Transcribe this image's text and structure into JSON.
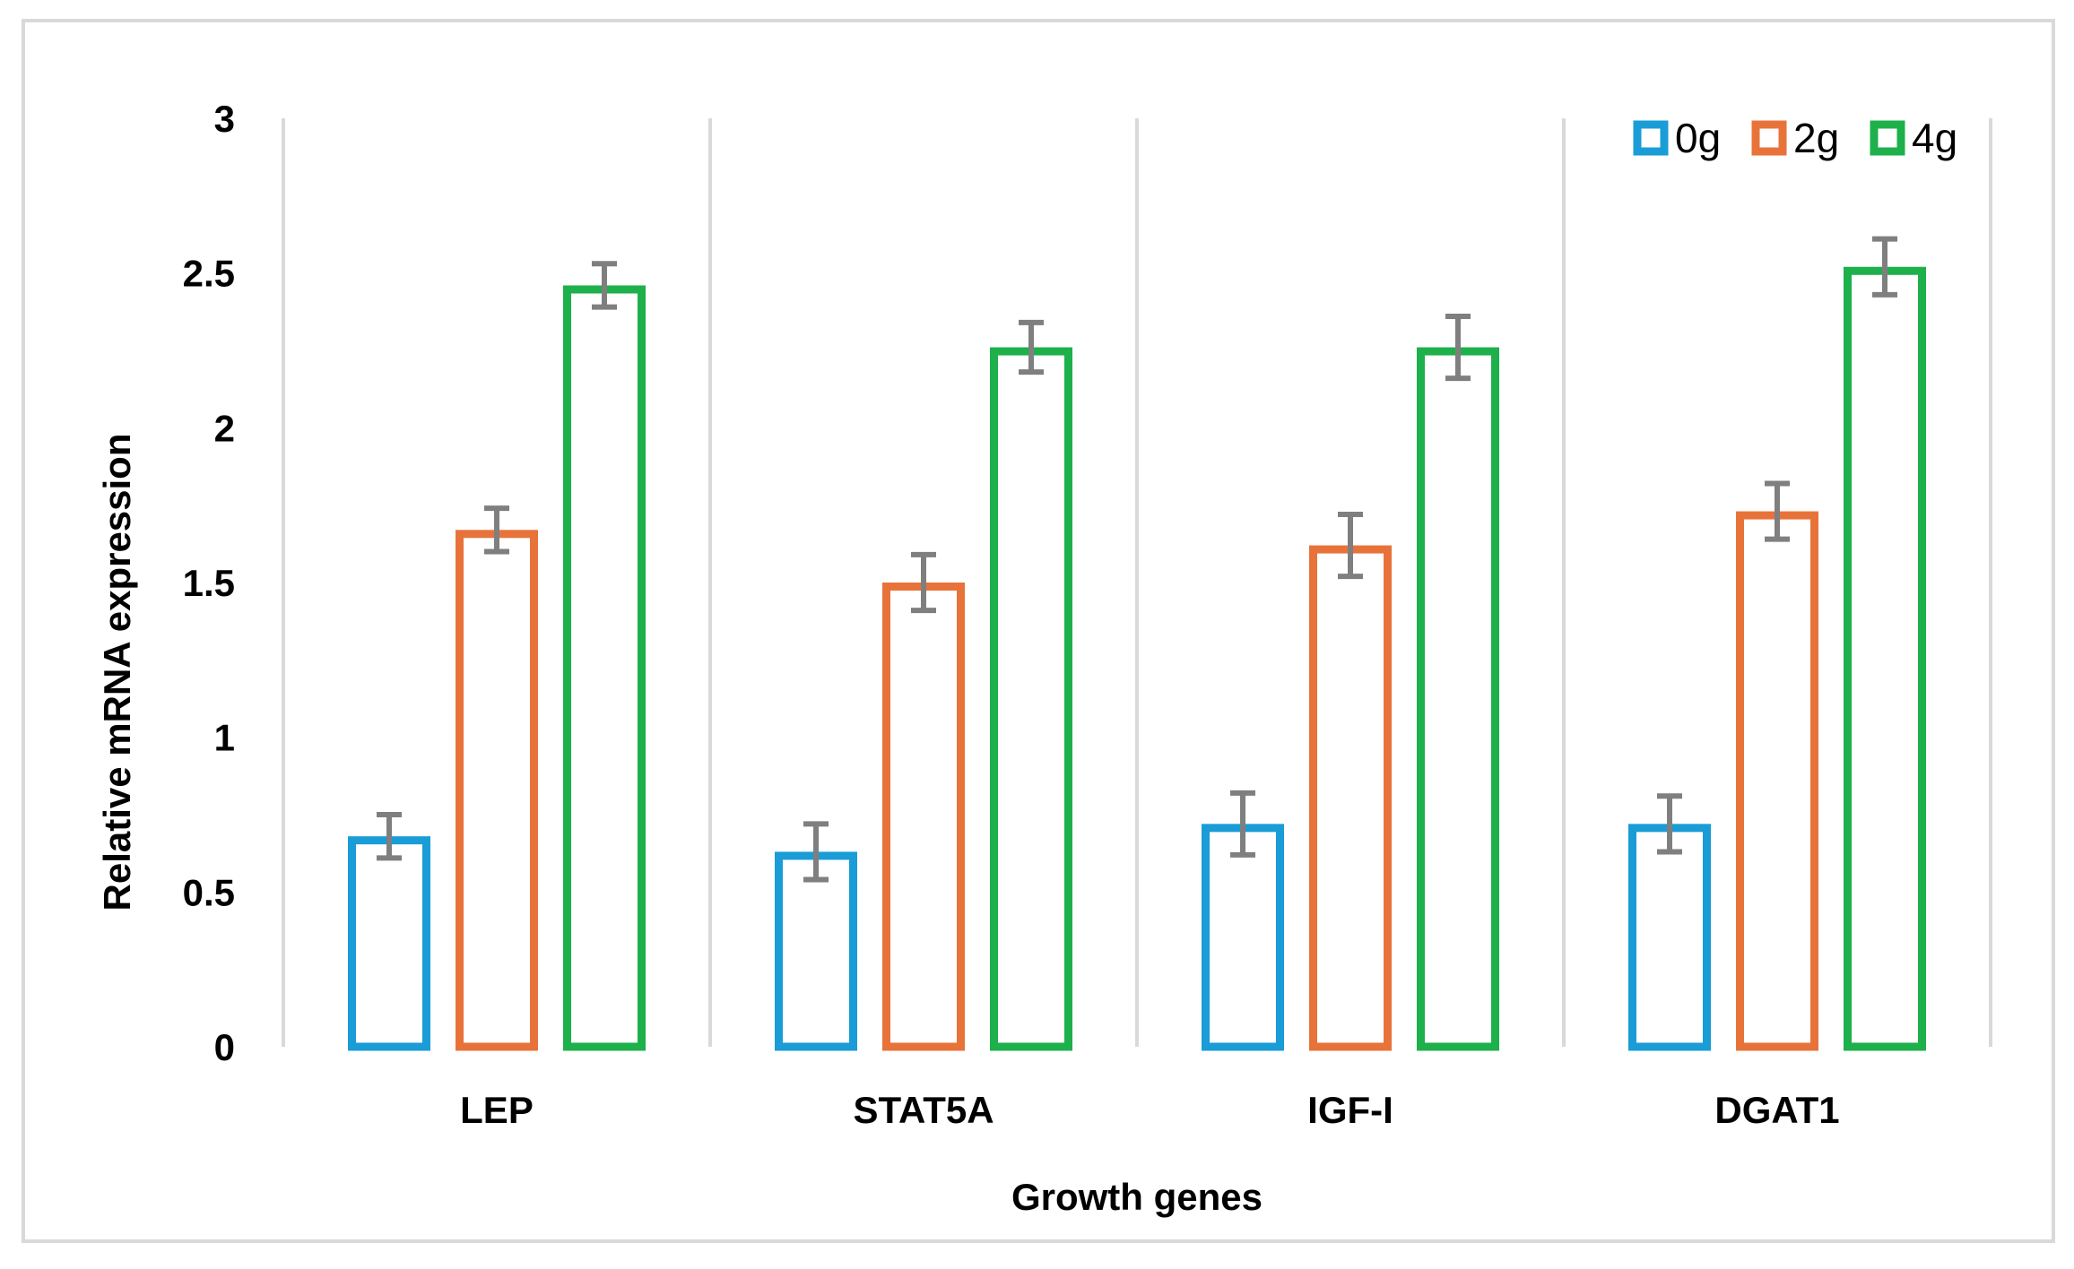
{
  "chart_data": {
    "type": "bar",
    "title": "",
    "xlabel": "Growth genes",
    "ylabel": "Relative mRNA expression",
    "ylim": [
      0,
      3
    ],
    "yticks": [
      "0",
      "0.5",
      "1",
      "1.5",
      "2",
      "2.5",
      "3"
    ],
    "categories": [
      "LEP",
      "STAT5A",
      "IGF-I",
      "DGAT1"
    ],
    "legend_position": "top-right",
    "bar_style": "outline",
    "series": [
      {
        "name": "0g",
        "color": "#1a9cd6",
        "values": [
          0.68,
          0.63,
          0.72,
          0.72
        ],
        "errors": [
          0.07,
          0.09,
          0.1,
          0.09
        ]
      },
      {
        "name": "2g",
        "color": "#e8733a",
        "values": [
          1.67,
          1.5,
          1.62,
          1.73
        ],
        "errors": [
          0.07,
          0.09,
          0.1,
          0.09
        ]
      },
      {
        "name": "4g",
        "color": "#1db04b",
        "values": [
          2.46,
          2.26,
          2.26,
          2.52
        ],
        "errors": [
          0.07,
          0.08,
          0.1,
          0.09
        ]
      }
    ],
    "error_bar_color": "#7f7f7f",
    "gridline_color": "#d9d9d9"
  }
}
